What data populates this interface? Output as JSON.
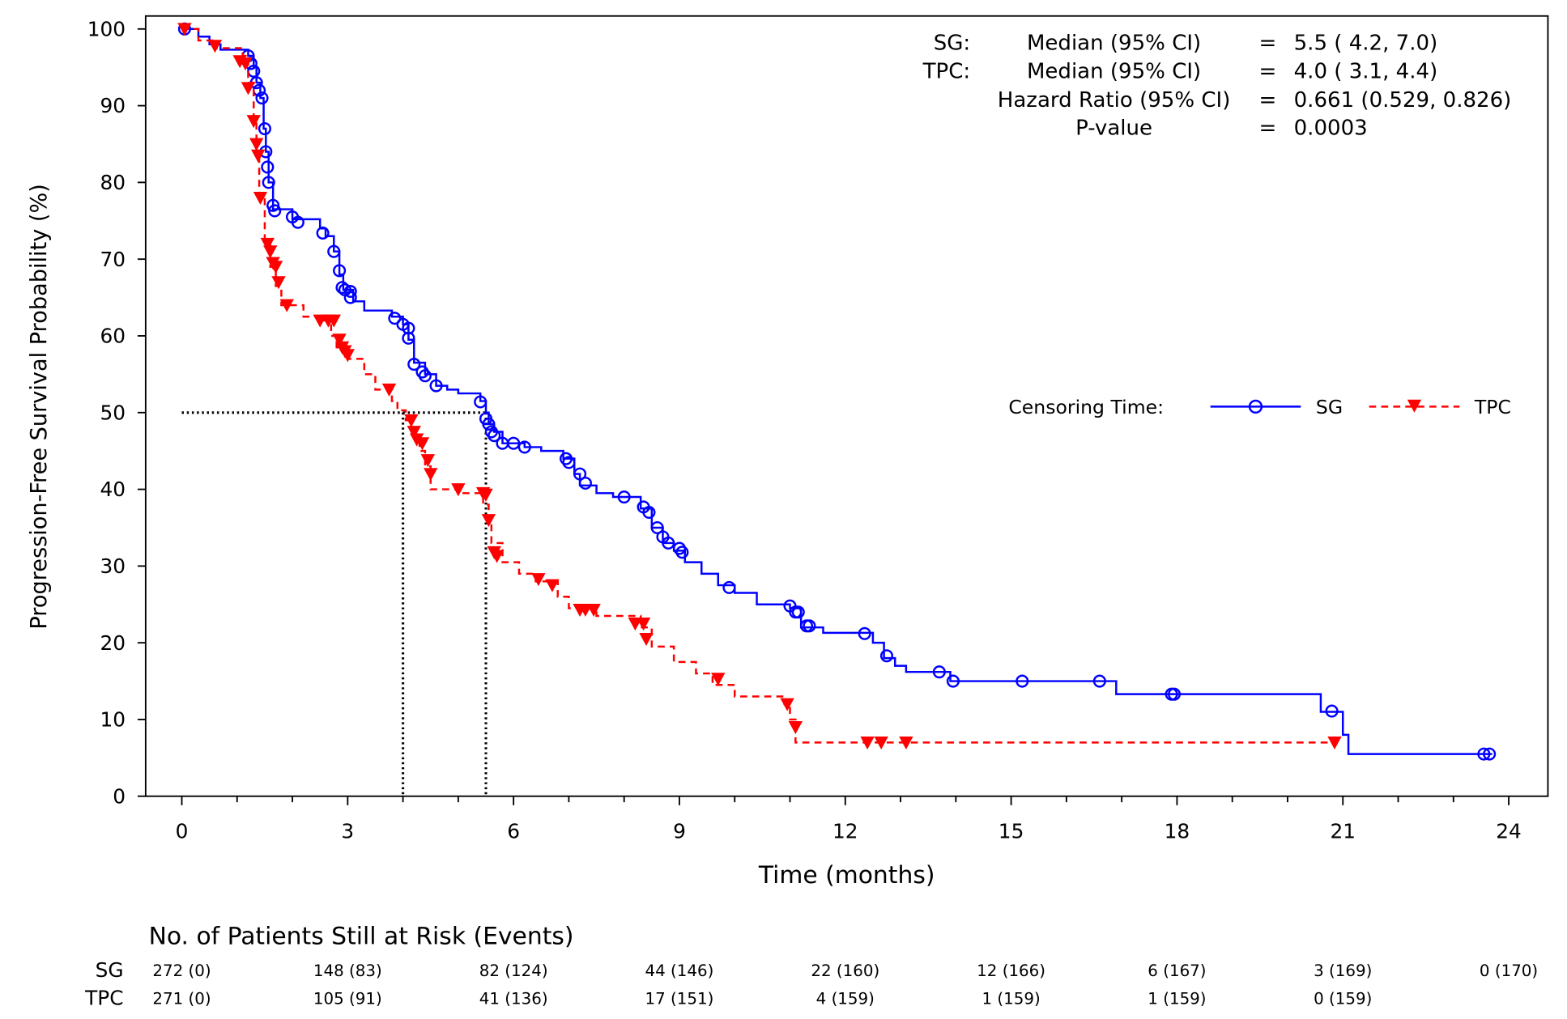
{
  "chart_data": {
    "type": "line",
    "subtype": "kaplan-meier",
    "xlabel": "Time (months)",
    "ylabel": "Progression-Free Survival Probability (%)",
    "xlim": [
      0,
      24
    ],
    "ylim": [
      0,
      100
    ],
    "xticks": [
      "0",
      "3",
      "6",
      "9",
      "12",
      "15",
      "18",
      "21",
      "24"
    ],
    "yticks": [
      "0",
      "10",
      "20",
      "30",
      "40",
      "50",
      "60",
      "70",
      "80",
      "90",
      "100"
    ],
    "grid": false,
    "stats": [
      {
        "group": "SG:",
        "label": "Median (95% CI)",
        "eq": "=",
        "value": "5.5 ( 4.2, 7.0)"
      },
      {
        "group": "TPC:",
        "label": "Median (95% CI)",
        "eq": "=",
        "value": "4.0 ( 3.1, 4.4)"
      },
      {
        "group": "",
        "label": "Hazard Ratio (95% CI)",
        "eq": "=",
        "value": "0.661 (0.529, 0.826)"
      },
      {
        "group": "",
        "label": "P-value",
        "eq": "=",
        "value": "0.0003"
      }
    ],
    "legend": {
      "title": "Censoring Time:",
      "placement": "right",
      "entries": [
        "SG",
        "TPC"
      ]
    },
    "medians": [
      {
        "series": "TPC",
        "x": 4.0,
        "y": 50
      },
      {
        "series": "SG",
        "x": 5.5,
        "y": 50
      }
    ],
    "series": [
      {
        "name": "SG",
        "color": "#0000ff",
        "line": "solid",
        "marker": "circle",
        "steps": [
          [
            0,
            100
          ],
          [
            0.3,
            99
          ],
          [
            0.5,
            98
          ],
          [
            0.7,
            97.3
          ],
          [
            1.2,
            96.5
          ],
          [
            1.3,
            95
          ],
          [
            1.35,
            93
          ],
          [
            1.42,
            91
          ],
          [
            1.48,
            87
          ],
          [
            1.52,
            84
          ],
          [
            1.57,
            80
          ],
          [
            1.65,
            76.5
          ],
          [
            2.0,
            75.2
          ],
          [
            2.5,
            74
          ],
          [
            2.6,
            73
          ],
          [
            2.75,
            71
          ],
          [
            2.85,
            68
          ],
          [
            2.92,
            66
          ],
          [
            3.1,
            64.5
          ],
          [
            3.3,
            63.3
          ],
          [
            3.8,
            62.5
          ],
          [
            4.0,
            61.5
          ],
          [
            4.1,
            59.5
          ],
          [
            4.2,
            56.5
          ],
          [
            4.4,
            55
          ],
          [
            4.6,
            53.5
          ],
          [
            4.8,
            53
          ],
          [
            5.0,
            52.5
          ],
          [
            5.4,
            51.5
          ],
          [
            5.5,
            50
          ],
          [
            5.55,
            48.5
          ],
          [
            5.65,
            47.5
          ],
          [
            5.8,
            46
          ],
          [
            6.2,
            45.5
          ],
          [
            6.5,
            45
          ],
          [
            6.9,
            44
          ],
          [
            7.1,
            42
          ],
          [
            7.2,
            40.5
          ],
          [
            7.5,
            39.5
          ],
          [
            7.8,
            39
          ],
          [
            8.3,
            37.5
          ],
          [
            8.5,
            35
          ],
          [
            8.7,
            33
          ],
          [
            8.9,
            32
          ],
          [
            9.1,
            30.5
          ],
          [
            9.4,
            29
          ],
          [
            9.7,
            27.5
          ],
          [
            10.0,
            26.5
          ],
          [
            10.4,
            25
          ],
          [
            11.0,
            24.5
          ],
          [
            11.2,
            22
          ],
          [
            11.6,
            21.3
          ],
          [
            12.5,
            20
          ],
          [
            12.7,
            18
          ],
          [
            12.9,
            17
          ],
          [
            13.1,
            16.2
          ],
          [
            13.9,
            15
          ],
          [
            16.9,
            13.3
          ],
          [
            20.6,
            11
          ],
          [
            21.0,
            8
          ],
          [
            21.1,
            5.5
          ],
          [
            23.7,
            5.5
          ]
        ],
        "censored": [
          [
            0.05,
            100
          ],
          [
            1.2,
            96.5
          ],
          [
            1.25,
            95.5
          ],
          [
            1.3,
            94.5
          ],
          [
            1.35,
            93
          ],
          [
            1.4,
            92
          ],
          [
            1.45,
            91
          ],
          [
            1.5,
            87
          ],
          [
            1.52,
            84
          ],
          [
            1.55,
            82
          ],
          [
            1.57,
            80
          ],
          [
            1.65,
            77
          ],
          [
            1.68,
            76.3
          ],
          [
            2.0,
            75.5
          ],
          [
            2.1,
            74.8
          ],
          [
            2.55,
            73.4
          ],
          [
            2.75,
            71
          ],
          [
            2.85,
            68.5
          ],
          [
            2.9,
            66.3
          ],
          [
            2.95,
            66
          ],
          [
            3.05,
            65.8
          ],
          [
            3.05,
            65
          ],
          [
            3.85,
            62.3
          ],
          [
            4.0,
            61.5
          ],
          [
            4.1,
            61
          ],
          [
            4.1,
            59.7
          ],
          [
            4.2,
            56.3
          ],
          [
            4.35,
            55.3
          ],
          [
            4.4,
            54.8
          ],
          [
            4.6,
            53.5
          ],
          [
            5.4,
            51.4
          ],
          [
            5.5,
            49.2
          ],
          [
            5.55,
            48.5
          ],
          [
            5.6,
            47.5
          ],
          [
            5.65,
            47
          ],
          [
            5.8,
            46
          ],
          [
            6.0,
            46
          ],
          [
            6.2,
            45.5
          ],
          [
            6.95,
            44
          ],
          [
            7.0,
            43.5
          ],
          [
            7.2,
            42
          ],
          [
            7.3,
            40.8
          ],
          [
            8.0,
            39
          ],
          [
            8.35,
            37.7
          ],
          [
            8.45,
            37
          ],
          [
            8.6,
            35
          ],
          [
            8.7,
            33.8
          ],
          [
            8.8,
            33
          ],
          [
            9.0,
            32.3
          ],
          [
            9.05,
            31.8
          ],
          [
            9.9,
            27.2
          ],
          [
            11.0,
            24.8
          ],
          [
            11.1,
            24
          ],
          [
            11.15,
            24
          ],
          [
            11.3,
            22.2
          ],
          [
            11.35,
            22.2
          ],
          [
            12.35,
            21.2
          ],
          [
            12.75,
            18.3
          ],
          [
            13.7,
            16.2
          ],
          [
            13.95,
            15
          ],
          [
            15.2,
            15
          ],
          [
            16.6,
            15
          ],
          [
            17.9,
            13.3
          ],
          [
            17.95,
            13.3
          ],
          [
            20.8,
            11.1
          ],
          [
            23.55,
            5.5
          ],
          [
            23.65,
            5.5
          ]
        ]
      },
      {
        "name": "TPC",
        "color": "#ff0000",
        "line": "dashed",
        "marker": "triangle-down",
        "steps": [
          [
            0,
            100
          ],
          [
            0.3,
            98.5
          ],
          [
            0.6,
            97.5
          ],
          [
            1.1,
            96.5
          ],
          [
            1.15,
            95.5
          ],
          [
            1.2,
            93
          ],
          [
            1.3,
            88
          ],
          [
            1.35,
            84
          ],
          [
            1.4,
            78
          ],
          [
            1.5,
            72
          ],
          [
            1.6,
            69
          ],
          [
            1.7,
            66.5
          ],
          [
            1.8,
            64
          ],
          [
            2.2,
            62.5
          ],
          [
            2.5,
            62
          ],
          [
            2.7,
            60
          ],
          [
            2.8,
            58.5
          ],
          [
            3.0,
            57
          ],
          [
            3.3,
            55
          ],
          [
            3.5,
            53
          ],
          [
            3.8,
            51.5
          ],
          [
            3.9,
            50.3
          ],
          [
            4.05,
            49
          ],
          [
            4.15,
            47
          ],
          [
            4.3,
            45
          ],
          [
            4.4,
            43
          ],
          [
            4.5,
            40
          ],
          [
            5.0,
            39.5
          ],
          [
            5.45,
            38
          ],
          [
            5.55,
            36
          ],
          [
            5.6,
            33
          ],
          [
            5.8,
            30.5
          ],
          [
            6.1,
            29
          ],
          [
            6.4,
            28
          ],
          [
            6.8,
            26
          ],
          [
            7.0,
            24.5
          ],
          [
            7.5,
            23.5
          ],
          [
            8.3,
            22
          ],
          [
            8.5,
            19.5
          ],
          [
            8.9,
            17.5
          ],
          [
            9.3,
            16
          ],
          [
            9.6,
            14.5
          ],
          [
            10.0,
            13
          ],
          [
            10.9,
            12
          ],
          [
            11.0,
            10
          ],
          [
            11.1,
            7
          ],
          [
            20.9,
            7
          ]
        ],
        "censored": [
          [
            0.05,
            100
          ],
          [
            0.6,
            97.8
          ],
          [
            1.05,
            95.8
          ],
          [
            1.15,
            95.5
          ],
          [
            1.2,
            92.3
          ],
          [
            1.3,
            88
          ],
          [
            1.35,
            85
          ],
          [
            1.38,
            83.5
          ],
          [
            1.42,
            78
          ],
          [
            1.55,
            72
          ],
          [
            1.6,
            71
          ],
          [
            1.65,
            69.5
          ],
          [
            1.7,
            69
          ],
          [
            1.75,
            67
          ],
          [
            1.9,
            64
          ],
          [
            2.5,
            62
          ],
          [
            2.65,
            62
          ],
          [
            2.75,
            62
          ],
          [
            2.85,
            59.5
          ],
          [
            2.9,
            58.5
          ],
          [
            2.95,
            58
          ],
          [
            3.0,
            57.5
          ],
          [
            3.75,
            53
          ],
          [
            4.15,
            49
          ],
          [
            4.2,
            47.5
          ],
          [
            4.25,
            46.5
          ],
          [
            4.35,
            46
          ],
          [
            4.45,
            43.8
          ],
          [
            4.5,
            42
          ],
          [
            5.0,
            40
          ],
          [
            5.45,
            39.5
          ],
          [
            5.5,
            39.3
          ],
          [
            5.55,
            36
          ],
          [
            5.65,
            31.8
          ],
          [
            5.7,
            31.3
          ],
          [
            6.45,
            28.3
          ],
          [
            6.7,
            27.5
          ],
          [
            7.2,
            24.3
          ],
          [
            7.3,
            24.3
          ],
          [
            7.45,
            24.3
          ],
          [
            8.2,
            22.5
          ],
          [
            8.35,
            22.5
          ],
          [
            8.4,
            20.5
          ],
          [
            9.7,
            15.3
          ],
          [
            10.95,
            12
          ],
          [
            11.1,
            9
          ],
          [
            12.4,
            7
          ],
          [
            12.65,
            7
          ],
          [
            13.1,
            7
          ],
          [
            20.85,
            7
          ]
        ]
      }
    ],
    "risk_table": {
      "title": "No. of Patients Still at Risk (Events)",
      "rows": [
        {
          "label": "SG",
          "values": [
            "272 (0)",
            "148 (83)",
            "82 (124)",
            "44 (146)",
            "22 (160)",
            "12 (166)",
            "6 (167)",
            "3 (169)",
            "0 (170)"
          ]
        },
        {
          "label": "TPC",
          "values": [
            "271 (0)",
            "105 (91)",
            "41 (136)",
            "17 (151)",
            "4 (159)",
            "1 (159)",
            "1 (159)",
            "0 (159)",
            ""
          ]
        }
      ]
    }
  }
}
